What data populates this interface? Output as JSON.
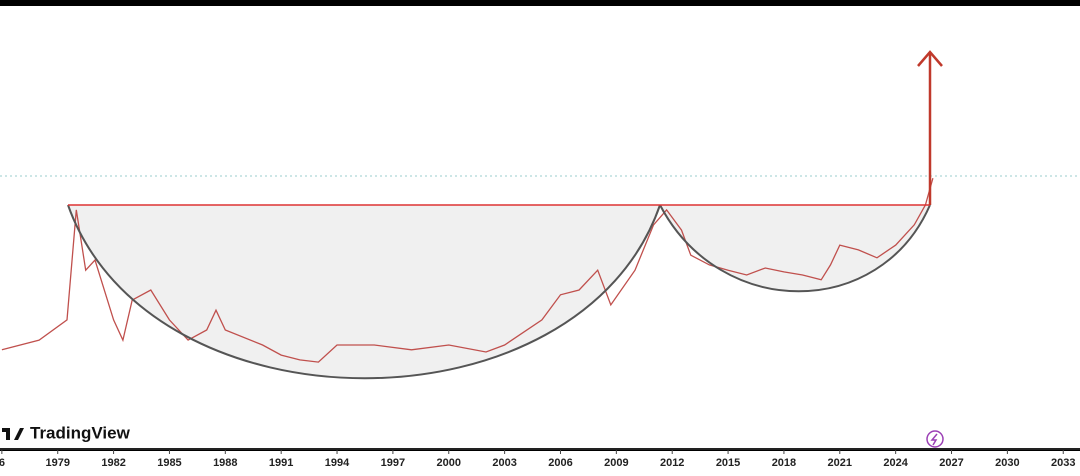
{
  "brand": "TradingView",
  "chart_data": {
    "type": "line",
    "x": [
      1976,
      1978,
      1979.5,
      1980,
      1980.5,
      1981,
      1982,
      1982.5,
      1983,
      1984,
      1985,
      1986,
      1987,
      1987.5,
      1988,
      1990,
      1991,
      1992,
      1993,
      1994,
      1996,
      1998,
      2000,
      2002,
      2003,
      2005,
      2006,
      2007,
      2008,
      2008.7,
      2010,
      2011,
      2011.7,
      2012.5,
      2013,
      2014,
      2015,
      2016,
      2017,
      2018,
      2019,
      2020,
      2020.5,
      2021,
      2022,
      2023,
      2024,
      2025,
      2025.6,
      2026
    ],
    "values": [
      20.5,
      22.7,
      27.3,
      52.3,
      38.6,
      40.9,
      27.3,
      22.7,
      31.8,
      34.1,
      27.3,
      22.7,
      25.0,
      29.5,
      25.0,
      21.6,
      19.3,
      18.2,
      17.7,
      21.6,
      21.6,
      20.5,
      21.6,
      20.0,
      21.6,
      27.3,
      33.0,
      34.1,
      38.6,
      30.7,
      38.6,
      48.9,
      52.3,
      47.7,
      42.0,
      39.8,
      38.6,
      37.5,
      39.1,
      38.2,
      37.5,
      36.4,
      39.8,
      44.3,
      43.2,
      41.4,
      44.3,
      48.9,
      53.4,
      59.5
    ],
    "color": "#c0504d",
    "ylim": [
      0,
      100
    ],
    "xlim": [
      1975.9,
      2033.9
    ],
    "xticks": [
      {
        "value": 1976,
        "label": "6"
      },
      1979,
      1982,
      1985,
      1988,
      1991,
      1994,
      1997,
      2000,
      2003,
      2006,
      2009,
      2012,
      2015,
      2018,
      2021,
      2024,
      2027,
      2030,
      2033
    ]
  }
}
